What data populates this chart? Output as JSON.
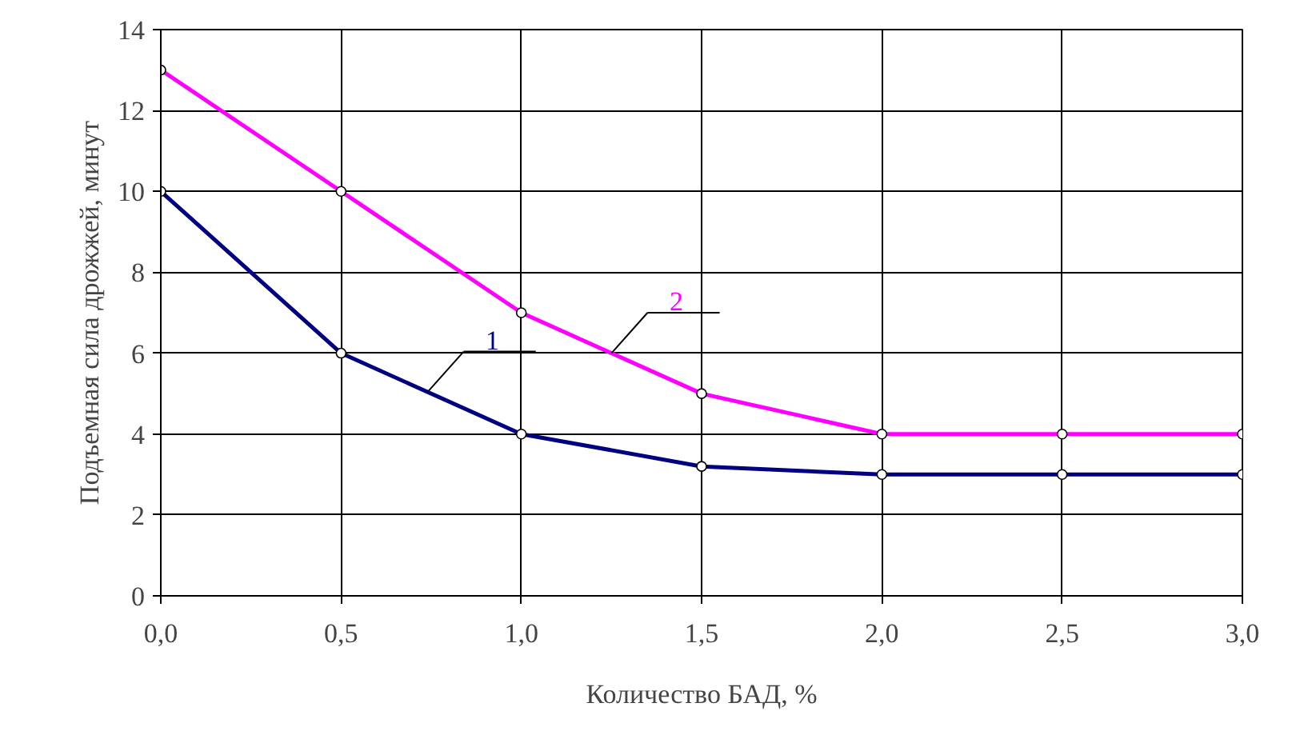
{
  "chart_data": {
    "type": "line",
    "xlabel": "Количество БАД, %",
    "ylabel": "Подъемная сила дрожжей, минут",
    "x": [
      0,
      0.5,
      1,
      1.5,
      2,
      2.5,
      3
    ],
    "series": [
      {
        "name": "1",
        "color": "#000080",
        "values": [
          10,
          6,
          4,
          3.2,
          3,
          3,
          3
        ]
      },
      {
        "name": "2",
        "color": "#ff00ff",
        "values": [
          13,
          10,
          7,
          5,
          4,
          4,
          4
        ]
      }
    ],
    "xlim": [
      0,
      3
    ],
    "ylim": [
      0,
      14
    ],
    "xticks": [
      {
        "value": 0,
        "label": "0,0"
      },
      {
        "value": 0.5,
        "label": "0,5"
      },
      {
        "value": 1,
        "label": "1,0"
      },
      {
        "value": 1.5,
        "label": "1,5"
      },
      {
        "value": 2,
        "label": "2,0"
      },
      {
        "value": 2.5,
        "label": "2,5"
      },
      {
        "value": 3,
        "label": "3,0"
      }
    ],
    "yticks": [
      0,
      2,
      4,
      6,
      8,
      10,
      12,
      14
    ],
    "grid": true,
    "legend": false,
    "marker": "circle",
    "line_style": "solid"
  }
}
